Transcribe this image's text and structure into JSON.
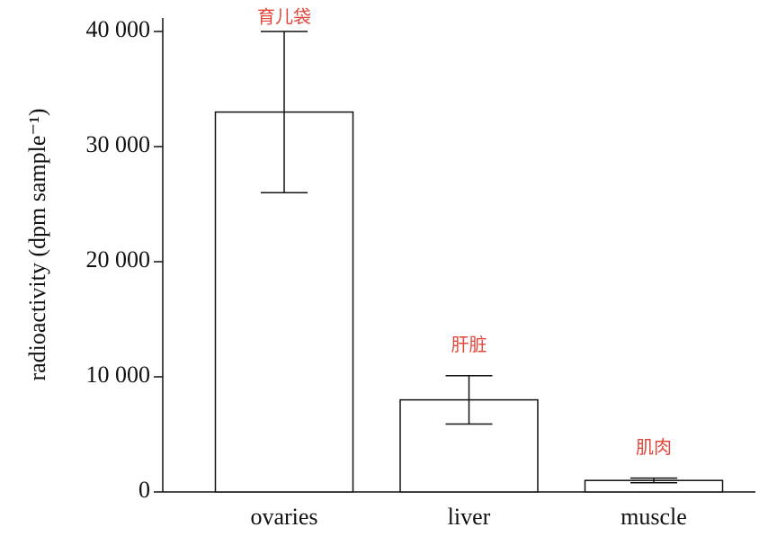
{
  "chart_data": {
    "type": "bar",
    "y_label": "radioactivity (dpm sample⁻¹)",
    "categories": [
      "ovaries",
      "liver",
      "muscle"
    ],
    "values": [
      33000,
      8000,
      1000
    ],
    "errors": [
      7000,
      2100,
      200
    ],
    "annotations": [
      "育儿袋",
      "肝脏",
      "肌肉"
    ],
    "color": "#ffffff",
    "ylim": [
      0,
      40000
    ],
    "yticks": [
      0,
      {
        "value": 10000,
        "label": "10 000"
      },
      {
        "value": 20000,
        "label": "20 000"
      },
      {
        "value": 30000,
        "label": "30 000"
      },
      {
        "value": 40000,
        "label": "40 000"
      }
    ],
    "grid": false
  }
}
